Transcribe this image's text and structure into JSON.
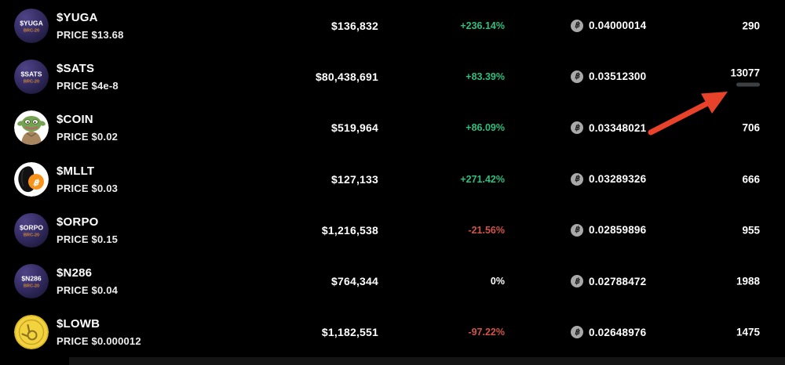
{
  "page": {
    "background": "#000000"
  },
  "colors": {
    "positive": "#2fbe7f",
    "negative": "#d0544a",
    "neutral": "#ffffff",
    "arrow": "#e9422a",
    "progress_track": "#3c4043",
    "progress_fill": "#2fbe7f",
    "brc20_badge_text": "#d2862f",
    "purple_icon": "#37306b",
    "bitcoin_orange": "#f7931a"
  },
  "table": {
    "rows": [
      {
        "symbol": "$YUGA",
        "price_label": "PRICE $13.68",
        "icon_type": "badge",
        "icon": {
          "symbol": "$YUGA",
          "badge": "BRC-20"
        },
        "volume": "$136,832",
        "change": "+236.14%",
        "change_dir": "positive",
        "btc_symbol": "฿",
        "btc_value": "0.04000014",
        "count": "290"
      },
      {
        "symbol": "$SATS",
        "price_label": "PRICE $4e-8",
        "icon_type": "badge",
        "icon": {
          "symbol": "$SATS",
          "badge": "BRC-20"
        },
        "volume": "$80,438,691",
        "change": "+83.39%",
        "change_dir": "positive",
        "btc_symbol": "฿",
        "btc_value": "0.03512300",
        "count": "13077",
        "progress": {
          "percent": 10
        }
      },
      {
        "symbol": "$COIN",
        "price_label": "PRICE $0.02",
        "icon_type": "coin",
        "icon": {
          "description": "green-pepe-character"
        },
        "volume": "$519,964",
        "change": "+86.09%",
        "change_dir": "positive",
        "btc_symbol": "฿",
        "btc_value": "0.03348021",
        "count": "706"
      },
      {
        "symbol": "$MLLT",
        "price_label": "PRICE $0.03",
        "icon_type": "mllt",
        "icon": {
          "description": "black-scribble-with-bitcoin-logo",
          "coin_letter": "฿"
        },
        "volume": "$127,133",
        "change": "+271.42%",
        "change_dir": "positive",
        "btc_symbol": "฿",
        "btc_value": "0.03289326",
        "count": "666"
      },
      {
        "symbol": "$ORPO",
        "price_label": "PRICE $0.15",
        "icon_type": "badge",
        "icon": {
          "symbol": "$ORPO",
          "badge": "BRC-20"
        },
        "volume": "$1,216,538",
        "change": "-21.56%",
        "change_dir": "negative",
        "btc_symbol": "฿",
        "btc_value": "0.02859896",
        "count": "955"
      },
      {
        "symbol": "$N286",
        "price_label": "PRICE $0.04",
        "icon_type": "badge",
        "icon": {
          "symbol": "$N286",
          "badge": "BRC-20"
        },
        "volume": "$764,344",
        "change": "0%",
        "change_dir": "neutral",
        "btc_symbol": "฿",
        "btc_value": "0.02788472",
        "count": "1988"
      },
      {
        "symbol": "$LOWB",
        "price_label": "PRICE $0.000012",
        "icon_type": "lowb",
        "icon": {
          "description": "gold-coin-loser-hand"
        },
        "volume": "$1,182,551",
        "change": "-97.22%",
        "change_dir": "negative",
        "btc_symbol": "฿",
        "btc_value": "0.02648976",
        "count": "1475"
      }
    ]
  },
  "annotations": {
    "arrow": {
      "color": "#e9422a",
      "tail": [
        829,
        169
      ],
      "tip": [
        927,
        117
      ],
      "points_at": "sats-mint-progress-bar"
    }
  }
}
